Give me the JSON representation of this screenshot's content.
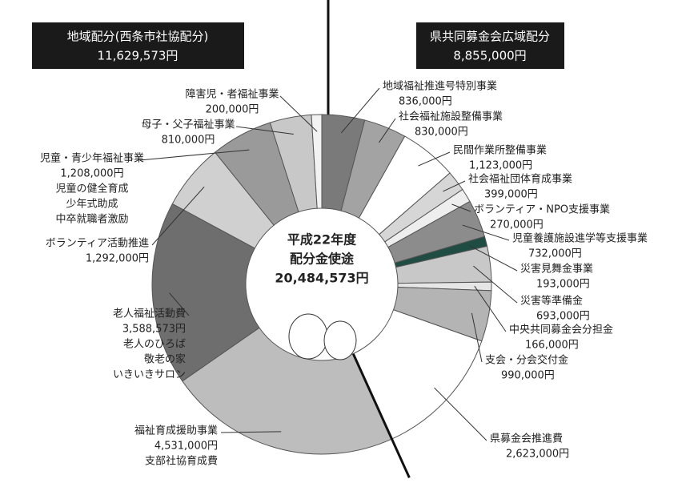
{
  "chart_data": {
    "type": "donut",
    "center_text": [
      "平成22年度",
      "配分金使途",
      "20,484,573円"
    ],
    "groups": [
      {
        "title": "地域配分(西条市社協配分)",
        "total": 11629573,
        "total_label": "11,629,573円"
      },
      {
        "title": "県共同募金会広域配分",
        "total": 8855000,
        "total_label": "8,855,000円"
      }
    ],
    "categories": [
      "地域福祉推進号特別事業",
      "社会福祉施設整備事業",
      "民間作業所整備事業",
      "社会福祉団体育成事業",
      "ボランティア・NPO支援事業",
      "児童養護施設進学等支援事業",
      "災害見舞金事業",
      "災害等準備金",
      "中央共同募金会分担金",
      "支会・分会交付金",
      "県募金会推進費",
      "福祉育成援助事業",
      "老人福祉活動費",
      "ボランティア活動推進",
      "児童・青少年福祉事業",
      "母子・父子福祉事業",
      "障害児・者福祉事業"
    ],
    "values": [
      836000,
      830000,
      1123000,
      399000,
      270000,
      732000,
      193000,
      693000,
      166000,
      990000,
      2623000,
      4531000,
      3588573,
      1292000,
      1208000,
      810000,
      200000
    ],
    "value_labels": [
      "836,000円",
      "830,000円",
      "1,123,000円",
      "399,000円",
      "270,000円",
      "732,000円",
      "193,000円",
      "693,000円",
      "166,000円",
      "990,000円",
      "2,623,000円",
      "4,531,000円",
      "3,588,573円",
      "1,292,000円",
      "1,208,000円",
      "810,000円",
      "200,000円"
    ],
    "details": [
      null,
      null,
      null,
      null,
      null,
      null,
      null,
      null,
      null,
      null,
      null,
      [
        "支部社協育成費"
      ],
      [
        "老人のひろば",
        "敬老の家",
        "いきいきサロン"
      ],
      null,
      [
        "児童の健全育成",
        "少年式助成",
        "中卒就職者激励"
      ],
      null,
      null
    ],
    "colors": [
      "#7a7a7a",
      "#a3a3a3",
      "#ffffff",
      "#d6d6d6",
      "#eeeeee",
      "#8c8c8c",
      "#1f4d44",
      "#c8c8c8",
      "#e6e6e6",
      "#b4b4b4",
      "#ffffff",
      "#bdbdbd",
      "#6e6e6e",
      "#d0d0d0",
      "#9a9a9a",
      "#c8c8c8",
      "#f2f2f2"
    ]
  }
}
